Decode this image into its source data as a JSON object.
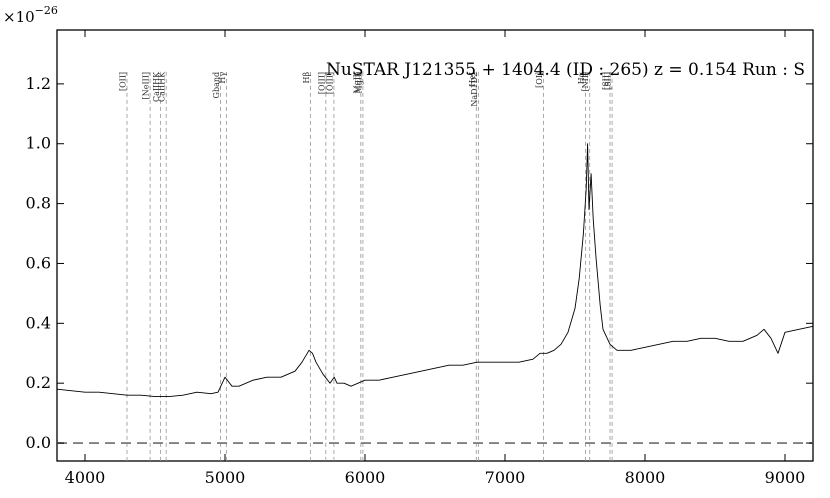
{
  "chart_data": {
    "type": "line",
    "title": "NuSTAR J121355 + 1404.4 (ID : 265)   z = 0.154   Run : S",
    "xlabel": "",
    "ylabel": "",
    "y_scale_factor": "×10",
    "y_scale_exponent": "−26",
    "xlim": [
      3800,
      9200
    ],
    "ylim": [
      -0.06,
      1.38
    ],
    "x_ticks": [
      4000,
      5000,
      6000,
      7000,
      8000,
      9000
    ],
    "x_tick_labels": [
      "4000",
      "5000",
      "6000",
      "7000",
      "8000",
      "9000"
    ],
    "y_ticks": [
      0.0,
      0.2,
      0.4,
      0.6,
      0.8,
      1.0,
      1.2
    ],
    "y_tick_labels": [
      "0.0",
      "0.2",
      "0.4",
      "0.6",
      "0.8",
      "1.0",
      "1.2"
    ],
    "grid": false,
    "zero_line": {
      "y": 0.0,
      "style": "dashed",
      "color": "#808080"
    },
    "spectrum_color": "#000000",
    "reference_line_color": "#a0a0a0",
    "emission_lines": [
      {
        "label": "[OII]",
        "x": 4300
      },
      {
        "label": "[NeIII]",
        "x": 4465
      },
      {
        "label": "CaIIHK",
        "x": 4540
      },
      {
        "label": "CaIIHK",
        "x": 4580
      },
      {
        "label": "Gband",
        "x": 4968
      },
      {
        "label": "Hγ",
        "x": 5010
      },
      {
        "label": "Hβ",
        "x": 5610
      },
      {
        "label": "[OIII]",
        "x": 5720
      },
      {
        "label": "[OIII]",
        "x": 5778
      },
      {
        "label": "MgIb",
        "x": 5970
      },
      {
        "label": "MgIb",
        "x": 5985
      },
      {
        "label": "HeI",
        "x": 6795
      },
      {
        "label": "NaD1D2",
        "x": 6810
      },
      {
        "label": "[OI]",
        "x": 7275
      },
      {
        "label": "Hα",
        "x": 7575
      },
      {
        "label": "[NII]",
        "x": 7605
      },
      {
        "label": "[SII]",
        "x": 7750
      },
      {
        "label": "[SII]",
        "x": 7765
      }
    ],
    "series": [
      {
        "type": "line",
        "x": [
          3800,
          3900,
          4000,
          4100,
          4200,
          4300,
          4400,
          4500,
          4600,
          4700,
          4800,
          4900,
          4950,
          5000,
          5050,
          5100,
          5200,
          5300,
          5400,
          5450,
          5500,
          5550,
          5600,
          5625,
          5650,
          5700,
          5750,
          5780,
          5800,
          5850,
          5900,
          6000,
          6100,
          6200,
          6300,
          6400,
          6500,
          6600,
          6700,
          6800,
          6900,
          7000,
          7100,
          7200,
          7250,
          7300,
          7350,
          7400,
          7450,
          7500,
          7530,
          7560,
          7580,
          7590,
          7600,
          7615,
          7630,
          7650,
          7680,
          7700,
          7750,
          7800,
          7900,
          8000,
          8100,
          8200,
          8300,
          8400,
          8500,
          8600,
          8700,
          8800,
          8850,
          8900,
          8950,
          9000,
          9100,
          9200
        ],
        "y": [
          0.18,
          0.175,
          0.17,
          0.17,
          0.165,
          0.16,
          0.16,
          0.155,
          0.155,
          0.16,
          0.17,
          0.165,
          0.17,
          0.22,
          0.19,
          0.19,
          0.21,
          0.22,
          0.22,
          0.23,
          0.24,
          0.27,
          0.31,
          0.3,
          0.27,
          0.23,
          0.2,
          0.22,
          0.2,
          0.2,
          0.19,
          0.21,
          0.21,
          0.22,
          0.23,
          0.24,
          0.25,
          0.26,
          0.26,
          0.27,
          0.27,
          0.27,
          0.27,
          0.28,
          0.3,
          0.3,
          0.31,
          0.33,
          0.37,
          0.45,
          0.55,
          0.7,
          0.85,
          1.0,
          0.78,
          0.9,
          0.75,
          0.62,
          0.46,
          0.38,
          0.33,
          0.31,
          0.31,
          0.32,
          0.33,
          0.34,
          0.34,
          0.35,
          0.35,
          0.34,
          0.34,
          0.36,
          0.38,
          0.35,
          0.3,
          0.37,
          0.38,
          0.39
        ]
      }
    ]
  }
}
